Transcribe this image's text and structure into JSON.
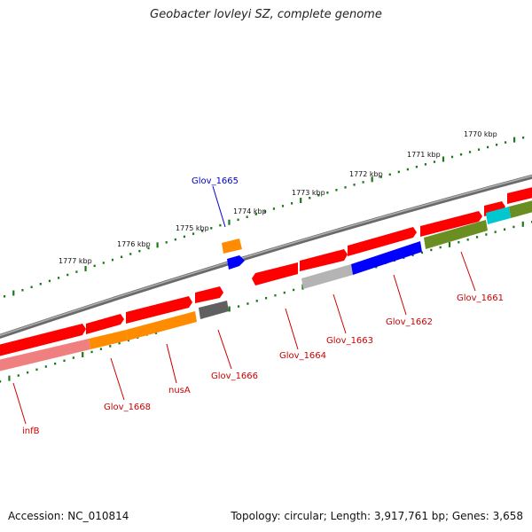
{
  "title": "Geobacter lovleyi SZ, complete genome",
  "footer": {
    "accession": "Accession: NC_010814",
    "summary": "Topology: circular; Length: 3,917,761 bp; Genes: 3,658"
  },
  "scale": {
    "unit": "kbp",
    "marks": [
      {
        "kbp": 1770,
        "label": "1770 kbp"
      },
      {
        "kbp": 1771,
        "label": "1771 kbp"
      },
      {
        "kbp": 1772,
        "label": "1772 kbp"
      },
      {
        "kbp": 1773,
        "label": "1773 kbp"
      },
      {
        "kbp": 1774,
        "label": "1774 kbp"
      },
      {
        "kbp": 1775,
        "label": "1775 kbp"
      },
      {
        "kbp": 1776,
        "label": "1776 kbp"
      },
      {
        "kbp": 1777,
        "label": "1777 kbp"
      }
    ]
  },
  "genes": [
    {
      "name": "Glov_1661",
      "color": "#6b8e23"
    },
    {
      "name": "Glov_1662",
      "color": "#0000ff"
    },
    {
      "name": "Glov_1663",
      "color": "#b4b4b4"
    },
    {
      "name": "Glov_1664",
      "color": "#ff0000"
    },
    {
      "name": "Glov_1665",
      "color": "#ff8c00",
      "label_color": "#0000cc"
    },
    {
      "name": "Glov_1666",
      "color": "#606060"
    },
    {
      "name": "nusA",
      "color": "#ff8c00"
    },
    {
      "name": "Glov_1668",
      "color": "#ff8c00"
    },
    {
      "name": "infB",
      "color": "#f08080"
    }
  ],
  "colors": {
    "backbone": "#808080",
    "cds": "#ff0000",
    "tick": "#1a7a1a"
  }
}
